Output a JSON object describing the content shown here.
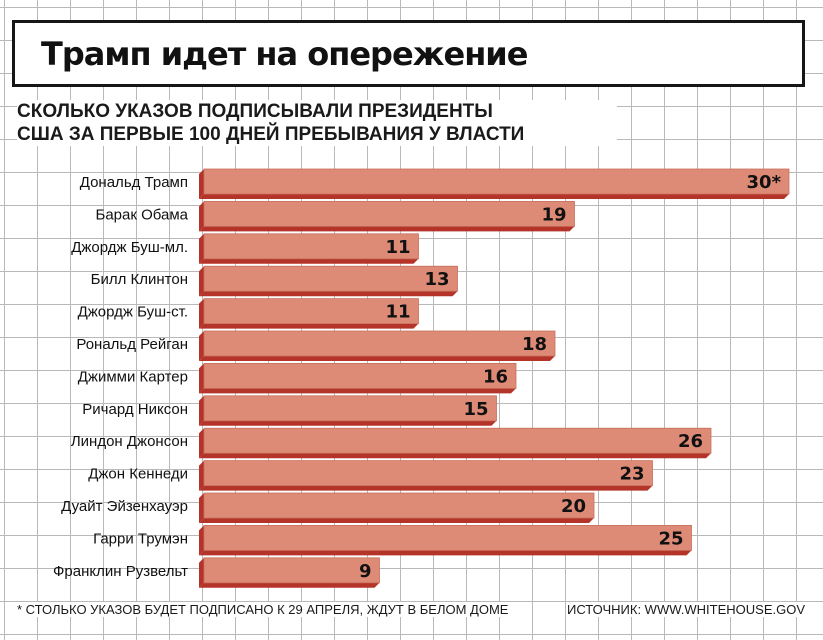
{
  "title": "Трамп идет на опережение",
  "subtitle_line1": "СКОЛЬКО УКАЗОВ ПОДПИСЫВАЛИ ПРЕЗИДЕНТЫ",
  "subtitle_line2": "США ЗА ПЕРВЫЕ 100 ДНЕЙ ПРЕБЫВАНИЯ У ВЛАСТИ",
  "footnote": "* СТОЛЬКО УКАЗОВ БУДЕТ ПОДПИСАНО К 29 АПРЕЛЯ, ЖДУТ В БЕЛОМ ДОМЕ",
  "source": "ИСТОЧНИК: WWW.WHITEHOUSE.GOV",
  "colors": {
    "bar_face": "#dd8b76",
    "bar_side": "#b5342a",
    "text": "#111111"
  },
  "chart_data": {
    "type": "bar",
    "orientation": "horizontal",
    "title": "Трамп идет на опережение",
    "subtitle": "СКОЛЬКО УКАЗОВ ПОДПИСЫВАЛИ ПРЕЗИДЕНТЫ США ЗА ПЕРВЫЕ 100 ДНЕЙ ПРЕБЫВАНИЯ У ВЛАСТИ",
    "categories": [
      "Дональд Трамп",
      "Барак Обама",
      "Джордж Буш-мл.",
      "Билл Клинтон",
      "Джордж Буш-ст.",
      "Рональд Рейган",
      "Джимми Картер",
      "Ричард Никсон",
      "Линдон Джонсон",
      "Джон Кеннеди",
      "Дуайт Эйзенхауэр",
      "Гарри Трумэн",
      "Франклин Рузвельт"
    ],
    "values": [
      30,
      19,
      11,
      13,
      11,
      18,
      16,
      15,
      26,
      23,
      20,
      25,
      9
    ],
    "value_labels": [
      "30*",
      "19",
      "11",
      "13",
      "11",
      "18",
      "16",
      "15",
      "26",
      "23",
      "20",
      "25",
      "9"
    ],
    "xlim": [
      0,
      30
    ],
    "grid": true,
    "legend": "none"
  }
}
